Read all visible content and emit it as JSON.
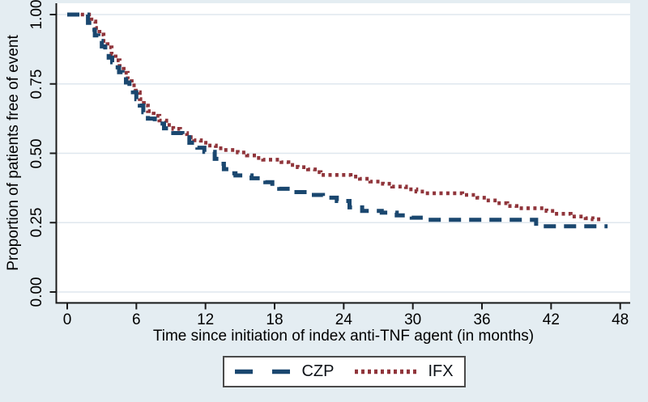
{
  "colors": {
    "background": "#e4edf2",
    "plot_background": "#ffffff",
    "gridline": "#dfe7ee",
    "axis": "#1a1a1a",
    "text": "#000000",
    "legend_border": "#4a4a4a",
    "czp": "#1a476f",
    "ifx": "#90353b"
  },
  "chart_data": {
    "type": "line",
    "subtype": "kaplan-meier-step",
    "title": "",
    "xlabel": "Time since initiation of index anti-TNF agent (in months)",
    "ylabel": "Proportion of patients free of event",
    "xlim": [
      0,
      48
    ],
    "ylim": [
      0,
      1
    ],
    "xticks": [
      0,
      6,
      12,
      18,
      24,
      30,
      36,
      42,
      48
    ],
    "ytick_labels": [
      "0.00",
      "0.25",
      "0.50",
      "0.75",
      "1.00"
    ],
    "ytick_values": [
      0,
      0.25,
      0.5,
      0.75,
      1
    ],
    "grid": "horizontal",
    "legend_position": "bottom",
    "series": [
      {
        "name": "CZP",
        "color": "#1a476f",
        "style": "dashed",
        "points": [
          [
            0,
            1.0
          ],
          [
            1.8,
            0.97
          ],
          [
            2.1,
            0.945
          ],
          [
            2.4,
            0.925
          ],
          [
            2.7,
            0.905
          ],
          [
            3.0,
            0.885
          ],
          [
            3.3,
            0.862
          ],
          [
            3.6,
            0.845
          ],
          [
            3.9,
            0.828
          ],
          [
            4.2,
            0.81
          ],
          [
            4.5,
            0.792
          ],
          [
            4.8,
            0.775
          ],
          [
            5.1,
            0.755
          ],
          [
            5.4,
            0.738
          ],
          [
            5.7,
            0.72
          ],
          [
            6.0,
            0.695
          ],
          [
            6.3,
            0.672
          ],
          [
            6.6,
            0.648
          ],
          [
            7.0,
            0.625
          ],
          [
            7.6,
            0.607
          ],
          [
            8.4,
            0.59
          ],
          [
            9.2,
            0.573
          ],
          [
            10.0,
            0.558
          ],
          [
            10.6,
            0.538
          ],
          [
            11.3,
            0.52
          ],
          [
            11.9,
            0.505
          ],
          [
            12.8,
            0.48
          ],
          [
            13.2,
            0.462
          ],
          [
            13.6,
            0.443
          ],
          [
            14.0,
            0.428
          ],
          [
            14.6,
            0.42
          ],
          [
            16.0,
            0.41
          ],
          [
            17.2,
            0.396
          ],
          [
            17.8,
            0.382
          ],
          [
            18.4,
            0.372
          ],
          [
            19.6,
            0.36
          ],
          [
            20.8,
            0.35
          ],
          [
            22.2,
            0.34
          ],
          [
            23.4,
            0.328
          ],
          [
            24.5,
            0.305
          ],
          [
            25.6,
            0.292
          ],
          [
            27.3,
            0.286
          ],
          [
            28.6,
            0.276
          ],
          [
            29.9,
            0.268
          ],
          [
            31.2,
            0.26
          ],
          [
            40.7,
            0.237
          ],
          [
            46.9,
            0.237
          ]
        ]
      },
      {
        "name": "IFX",
        "color": "#90353b",
        "style": "dotted",
        "points": [
          [
            0,
            1.0
          ],
          [
            2.1,
            0.975
          ],
          [
            2.45,
            0.952
          ],
          [
            2.8,
            0.928
          ],
          [
            3.15,
            0.905
          ],
          [
            3.5,
            0.882
          ],
          [
            3.85,
            0.858
          ],
          [
            4.2,
            0.835
          ],
          [
            4.55,
            0.812
          ],
          [
            4.9,
            0.79
          ],
          [
            5.25,
            0.768
          ],
          [
            5.6,
            0.745
          ],
          [
            5.95,
            0.72
          ],
          [
            6.3,
            0.695
          ],
          [
            6.65,
            0.672
          ],
          [
            7.0,
            0.652
          ],
          [
            7.5,
            0.635
          ],
          [
            8.0,
            0.618
          ],
          [
            8.6,
            0.602
          ],
          [
            9.2,
            0.588
          ],
          [
            9.8,
            0.573
          ],
          [
            10.4,
            0.558
          ],
          [
            11.0,
            0.547
          ],
          [
            11.6,
            0.538
          ],
          [
            12.2,
            0.528
          ],
          [
            12.9,
            0.518
          ],
          [
            13.6,
            0.512
          ],
          [
            14.8,
            0.503
          ],
          [
            15.6,
            0.492
          ],
          [
            16.4,
            0.483
          ],
          [
            17.0,
            0.477
          ],
          [
            18.6,
            0.468
          ],
          [
            19.2,
            0.458
          ],
          [
            20.0,
            0.45
          ],
          [
            20.9,
            0.442
          ],
          [
            21.5,
            0.432
          ],
          [
            22.0,
            0.422
          ],
          [
            24.6,
            0.416
          ],
          [
            25.4,
            0.408
          ],
          [
            26.3,
            0.398
          ],
          [
            27.4,
            0.39
          ],
          [
            28.2,
            0.38
          ],
          [
            29.4,
            0.37
          ],
          [
            30.3,
            0.362
          ],
          [
            31.1,
            0.356
          ],
          [
            34.3,
            0.35
          ],
          [
            35.6,
            0.34
          ],
          [
            36.4,
            0.33
          ],
          [
            37.3,
            0.32
          ],
          [
            38.2,
            0.31
          ],
          [
            39.0,
            0.302
          ],
          [
            41.6,
            0.292
          ],
          [
            42.3,
            0.282
          ],
          [
            43.7,
            0.272
          ],
          [
            45.0,
            0.266
          ],
          [
            45.6,
            0.262
          ],
          [
            46.5,
            0.262
          ]
        ]
      }
    ]
  },
  "legend": {
    "items": [
      {
        "label": "CZP"
      },
      {
        "label": "IFX"
      }
    ]
  }
}
